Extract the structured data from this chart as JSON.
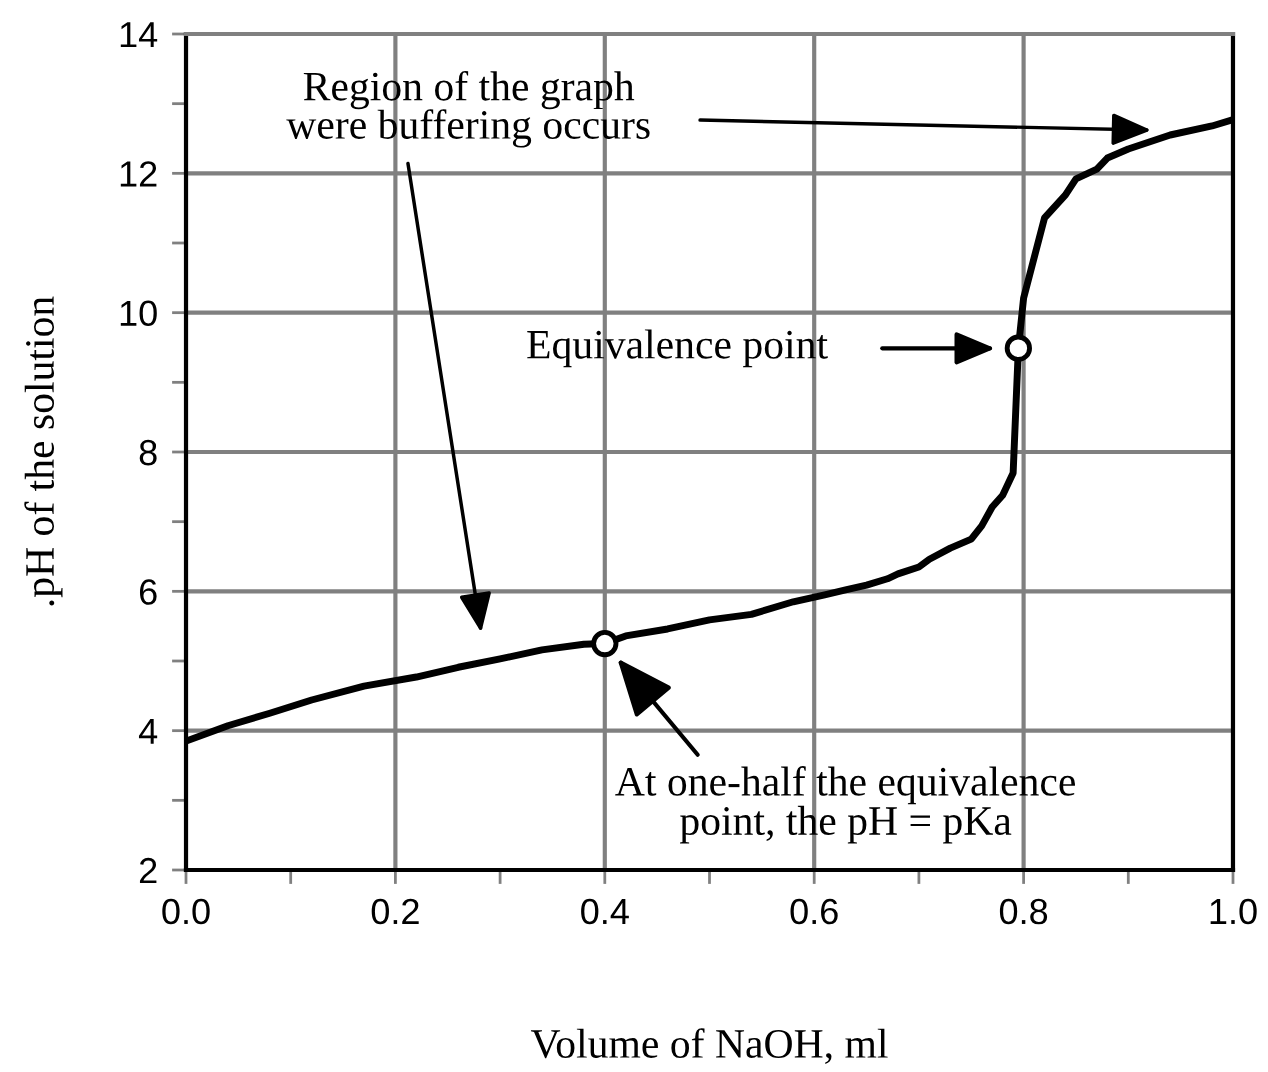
{
  "chart_data": {
    "type": "line",
    "xlabel": "Volume of NaOH, ml",
    "ylabel": ".pH of the solution",
    "xlim": [
      0,
      1.0
    ],
    "ylim": [
      2,
      14
    ],
    "xticks": [
      {
        "value": 0,
        "label": "0.0"
      },
      {
        "value": 0.1,
        "label": null
      },
      {
        "value": 0.2,
        "label": "0.2"
      },
      {
        "value": 0.3,
        "label": null
      },
      {
        "value": 0.4,
        "label": "0.4"
      },
      {
        "value": 0.5,
        "label": null
      },
      {
        "value": 0.6,
        "label": "0.6"
      },
      {
        "value": 0.7,
        "label": null
      },
      {
        "value": 0.8,
        "label": "0.8"
      },
      {
        "value": 0.9,
        "label": null
      },
      {
        "value": 1.0,
        "label": "1.0"
      }
    ],
    "yticks": [
      2,
      {
        "value": 3,
        "label": null
      },
      4,
      {
        "value": 5,
        "label": null
      },
      6,
      {
        "value": 7,
        "label": null
      },
      8,
      {
        "value": 9,
        "label": null
      },
      10,
      {
        "value": 11,
        "label": null
      },
      12,
      {
        "value": 13,
        "label": null
      },
      14
    ],
    "grid": true,
    "marker": "none",
    "line_style": "solid",
    "series": [
      {
        "color": "#000000",
        "x": [
          0,
          0.04,
          0.08,
          0.12,
          0.17,
          0.22,
          0.26,
          0.3,
          0.34,
          0.38,
          0.4,
          0.42,
          0.46,
          0.5,
          0.54,
          0.58,
          0.61,
          0.63,
          0.65,
          0.67,
          0.68,
          0.7,
          0.71,
          0.73,
          0.75,
          0.76,
          0.77,
          0.78,
          0.79,
          0.795,
          0.8,
          0.82,
          0.84,
          0.85,
          0.87,
          0.88,
          0.9,
          0.94,
          0.98,
          1.0
        ],
        "values": [
          3.85,
          4.07,
          4.25,
          4.44,
          4.64,
          4.77,
          4.91,
          5.03,
          5.16,
          5.24,
          5.25,
          5.36,
          5.46,
          5.59,
          5.67,
          5.85,
          5.95,
          6.02,
          6.09,
          6.18,
          6.25,
          6.35,
          6.46,
          6.62,
          6.75,
          6.94,
          7.21,
          7.38,
          7.7,
          9.49,
          10.21,
          11.36,
          11.69,
          11.92,
          12.06,
          12.22,
          12.35,
          12.55,
          12.68,
          12.77
        ]
      },
      {
        "type": "scatter",
        "marker": "circle",
        "color": "#000000",
        "x": [
          0.4,
          0.795
        ],
        "values": [
          5.25,
          9.49
        ]
      }
    ],
    "annotations": [
      "Region of the graph\nwere buffering occurs",
      "Equivalence point",
      {
        "text": "At one-half the equivalence\npoint, the pH = pKa",
        "x": 0.4,
        "y": 5.25
      }
    ]
  }
}
